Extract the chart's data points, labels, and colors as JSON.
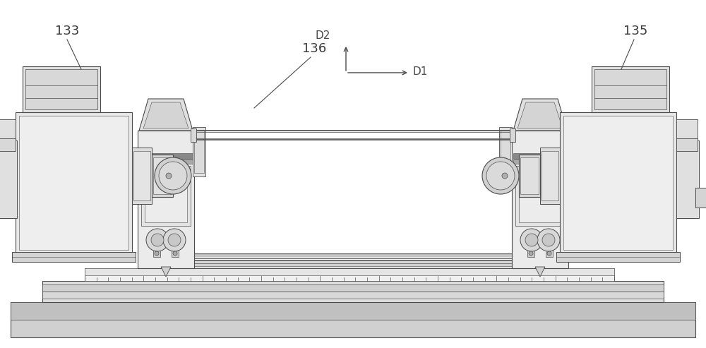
{
  "bg_color": "#ffffff",
  "lc": "#4a4a4a",
  "lc2": "#666666",
  "fg": "#e8e8e8",
  "fg2": "#d4d4d4",
  "fg3": "#c0c0c0",
  "fg4": "#b0b0b0",
  "figsize": [
    10.0,
    4.93
  ],
  "dpi": 100
}
